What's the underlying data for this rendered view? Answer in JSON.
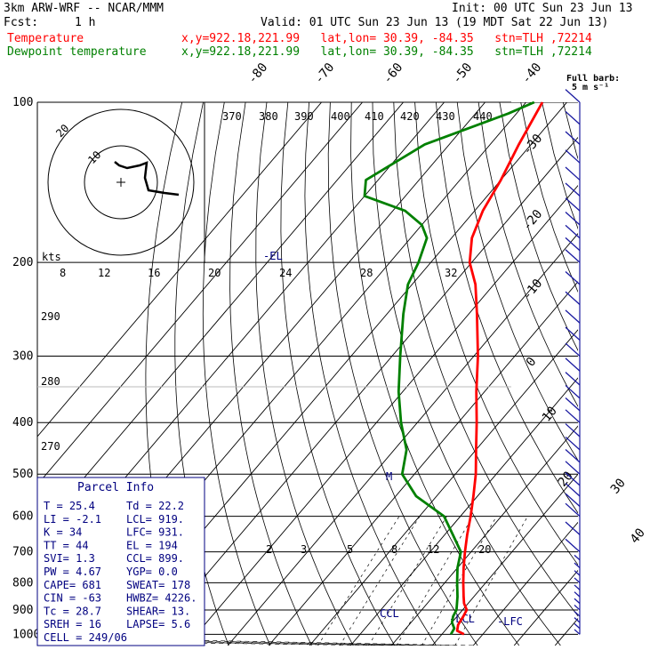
{
  "header": {
    "model": "3km ARW-WRF -- NCAR/MMM",
    "init": "Init: 00 UTC Sun 23 Jun 13",
    "fcst_label": "Fcst:",
    "fcst_value": "1 h",
    "valid": "Valid: 01 UTC Sun 23 Jun 13 (19 MDT Sat 22 Jun 13)",
    "temp_name": "Temperature",
    "temp_info": "x,y=922.18,221.99   lat,lon= 30.39, -84.35   stn=TLH ,72214",
    "dew_name": "Dewpoint temperature",
    "dew_info": "x,y=922.18,221.99   lat,lon= 30.39, -84.35   stn=TLH ,72214"
  },
  "colors": {
    "temperature": "#ff0000",
    "dewpoint": "#008000",
    "wind": "#1a1aa0",
    "panel": "#000080"
  },
  "wind_legend": {
    "line1": "Full barb:",
    "line2": "5 m s⁻¹"
  },
  "hodograph": {
    "ring_labels": [
      "10",
      "20"
    ],
    "units": "kts"
  },
  "parcel_info": {
    "title": "Parcel Info",
    "rows": [
      [
        "T  =   25.4",
        "Td =  22.2"
      ],
      [
        "LI =   -2.1",
        "LCL=  919."
      ],
      [
        "K  =     34",
        "LFC=  931."
      ],
      [
        "TT =     44",
        "EL =   194"
      ],
      [
        "SVI=    1.3",
        "CCL=  899."
      ],
      [
        "PW =   4.67",
        "YGP=   0.0"
      ],
      [
        "CAPE=   681",
        "SWEAT=  178"
      ],
      [
        "CIN =   -63",
        "HWBZ= 4226."
      ],
      [
        "Tc =   28.7",
        "SHEAR=  13."
      ],
      [
        "SREH =   16",
        "LAPSE=  5.6"
      ],
      [
        "CELL = 249/06",
        ""
      ]
    ]
  },
  "annotations": {
    "el": "-EL",
    "ccl": "CCL",
    "lcl": "-LCL",
    "lfc": "-LFC",
    "m": "M"
  },
  "chart_data": {
    "type": "line",
    "subtype": "skew-T log-P",
    "pressure_axis_label_values": [
      100,
      200,
      300,
      400,
      500,
      600,
      700,
      800,
      900,
      1000
    ],
    "isotherm_labels": [
      "-80",
      "-70",
      "-60",
      "-50",
      "-40",
      "-30",
      "-20",
      "-10",
      "0",
      "10",
      "20",
      "30",
      "40"
    ],
    "theta_labels": [
      "370",
      "380",
      "390",
      "400",
      "410",
      "420",
      "430",
      "440"
    ],
    "theta_side_labels": [
      "290",
      "280",
      "270"
    ],
    "mixing_ratio_labels": [
      "2",
      "3",
      "5",
      "8",
      "12",
      "20"
    ],
    "hodo_speed_labels": [
      "8",
      "12",
      "16",
      "20",
      "24",
      "28",
      "32"
    ],
    "series": [
      {
        "name": "Temperature",
        "points": [
          [
            1000,
            25.4
          ],
          [
            985,
            23
          ],
          [
            960,
            22
          ],
          [
            925,
            21.5
          ],
          [
            900,
            21
          ],
          [
            875,
            19
          ],
          [
            850,
            17.5
          ],
          [
            800,
            14.5
          ],
          [
            750,
            11.5
          ],
          [
            700,
            8.5
          ],
          [
            650,
            5.5
          ],
          [
            600,
            2.5
          ],
          [
            550,
            -1
          ],
          [
            500,
            -5
          ],
          [
            450,
            -10
          ],
          [
            400,
            -15.5
          ],
          [
            350,
            -22
          ],
          [
            300,
            -29
          ],
          [
            250,
            -38
          ],
          [
            220,
            -44.5
          ],
          [
            200,
            -50.5
          ],
          [
            180,
            -55
          ],
          [
            160,
            -58
          ],
          [
            140,
            -60
          ],
          [
            120,
            -63
          ],
          [
            100,
            -66
          ]
        ]
      },
      {
        "name": "Dewpoint temperature",
        "points": [
          [
            1000,
            22.2
          ],
          [
            975,
            21.8
          ],
          [
            950,
            20
          ],
          [
            925,
            19
          ],
          [
            900,
            18.5
          ],
          [
            850,
            16
          ],
          [
            800,
            13
          ],
          [
            750,
            10
          ],
          [
            700,
            7.5
          ],
          [
            650,
            2
          ],
          [
            600,
            -4
          ],
          [
            550,
            -15
          ],
          [
            500,
            -23
          ],
          [
            450,
            -27
          ],
          [
            400,
            -34
          ],
          [
            350,
            -41
          ],
          [
            300,
            -48
          ],
          [
            250,
            -56
          ],
          [
            220,
            -61
          ],
          [
            200,
            -63
          ],
          [
            180,
            -66
          ],
          [
            170,
            -70
          ],
          [
            160,
            -77
          ],
          [
            150,
            -90
          ],
          [
            140,
            -93
          ],
          [
            120,
            -86
          ],
          [
            105,
            -72
          ],
          [
            100,
            -68
          ]
        ]
      }
    ],
    "wind_barbs_pressure": [
      1000,
      975,
      950,
      925,
      900,
      875,
      850,
      825,
      800,
      775,
      750,
      725,
      700,
      650,
      600,
      575,
      550,
      525,
      500,
      475,
      450,
      425,
      400,
      380,
      360,
      340,
      320,
      300,
      280,
      260,
      240,
      220,
      200,
      190,
      180,
      170,
      160,
      150,
      140,
      130,
      120,
      110,
      100
    ]
  }
}
